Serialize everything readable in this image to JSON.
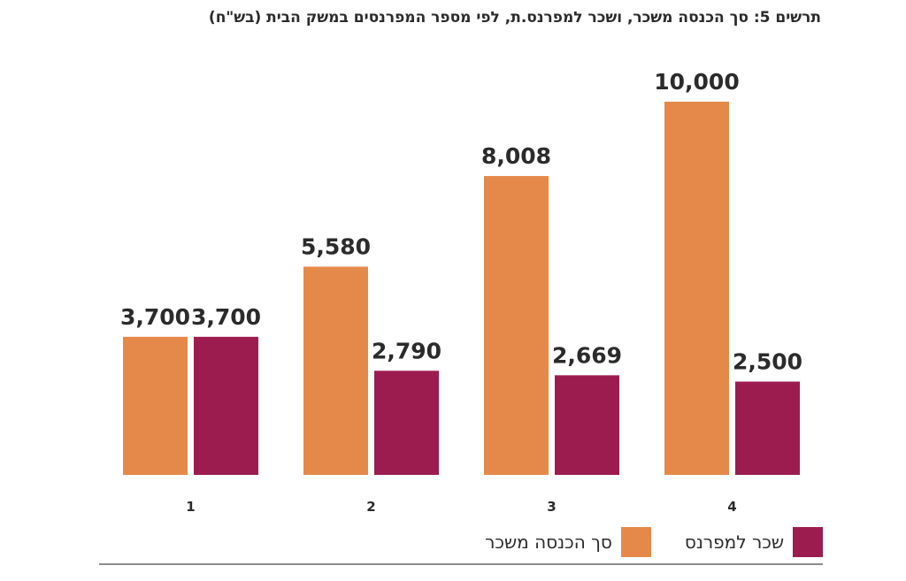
{
  "chart_data": {
    "type": "bar",
    "title": "תרשים 5: סך הכנסה משכר, ושכר למפרנס.ת, לפי מספר המפרנסים במשק הבית (בש\"ח)",
    "xlabel": "",
    "ylabel": "",
    "categories": [
      "1",
      "2",
      "3",
      "4"
    ],
    "series": [
      {
        "name": "סך הכנסה משכר",
        "color": "#E5894A",
        "values": [
          3700,
          5580,
          8008,
          10000
        ],
        "labels": [
          "3,700",
          "5,580",
          "8,008",
          "10,000"
        ]
      },
      {
        "name": "שכר למפרנס",
        "color": "#9D1C4F",
        "values": [
          3700,
          2790,
          2669,
          2500
        ],
        "labels": [
          "3,700",
          "2,790",
          "2,669",
          "2,500"
        ]
      }
    ],
    "ylim": [
      0,
      10000
    ],
    "grid": false,
    "legend": "bottom"
  }
}
